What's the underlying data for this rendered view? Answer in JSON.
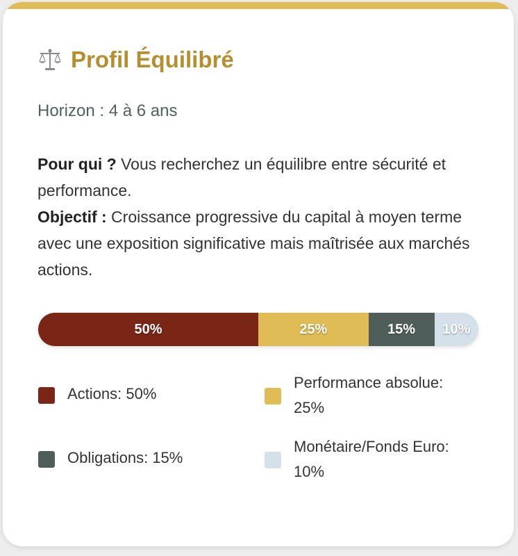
{
  "card": {
    "title": "Profil Équilibré",
    "icon": "scales-icon",
    "horizon": "Horizon : 4 à 6 ans",
    "for_who_label": "Pour qui ?",
    "for_who_text": " Vous recherchez un équilibre entre sécurité et performance.",
    "objective_label": "Objectif :",
    "objective_text": " Croissance progressive du capital à moyen terme avec une exposition significative mais maîtrisée aux marchés actions."
  },
  "allocation": [
    {
      "name": "Actions",
      "percent": 50,
      "label": "50%",
      "legend": "Actions: 50%",
      "color": "#7a2516"
    },
    {
      "name": "Performance absolue",
      "percent": 25,
      "label": "25%",
      "legend_line1": "Performance absolue:",
      "legend_line2": "25%",
      "color": "#dfbc55"
    },
    {
      "name": "Obligations",
      "percent": 15,
      "label": "15%",
      "legend": "Obligations: 15%",
      "color": "#4f5e5a"
    },
    {
      "name": "Monétaire/Fonds Euro",
      "percent": 10,
      "label": "10%",
      "legend_line1": "Monétaire/Fonds Euro:",
      "legend_line2": "10%",
      "color": "#d4e1ea"
    }
  ],
  "colors": {
    "accent": "#b58f2e",
    "top_border": "#dfbc55",
    "horizon_text": "#4f6260"
  }
}
